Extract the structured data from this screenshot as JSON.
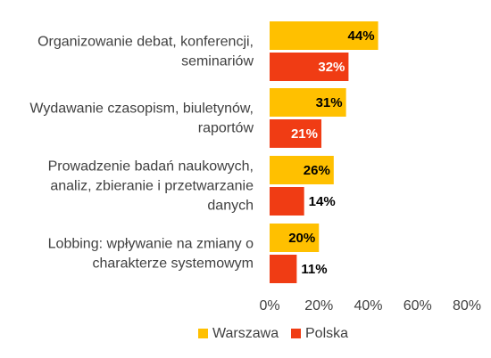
{
  "chart_data": {
    "type": "bar",
    "orientation": "horizontal",
    "categories": [
      [
        "Organizowanie debat, konferencji,",
        "seminariów"
      ],
      [
        "Wydawanie czasopism, biuletynów,",
        "raportów"
      ],
      [
        "Prowadzenie badań naukowych,",
        "analiz, zbieranie i przetwarzanie",
        "danych"
      ],
      [
        "Lobbing: wpływanie na zmiany o",
        "charakterze systemowym"
      ]
    ],
    "series": [
      {
        "name": "Warszawa",
        "color": "#FFC000",
        "values": [
          44,
          31,
          26,
          20
        ],
        "labels": [
          "44%",
          "31%",
          "26%",
          "20%"
        ],
        "label_color": "#000000"
      },
      {
        "name": "Polska",
        "color": "#F03C14",
        "values": [
          32,
          21,
          14,
          11
        ],
        "labels": [
          "32%",
          "21%",
          "14%",
          "11%"
        ],
        "label_color": "#FFFFFF",
        "outside_label_color": "#000000"
      }
    ],
    "x_ticks": [
      0,
      20,
      40,
      60,
      80
    ],
    "x_tick_labels": [
      "0%",
      "20%",
      "40%",
      "60%",
      "80%"
    ],
    "xlim": [
      0,
      80
    ],
    "grid": false,
    "legend_position": "bottom"
  }
}
